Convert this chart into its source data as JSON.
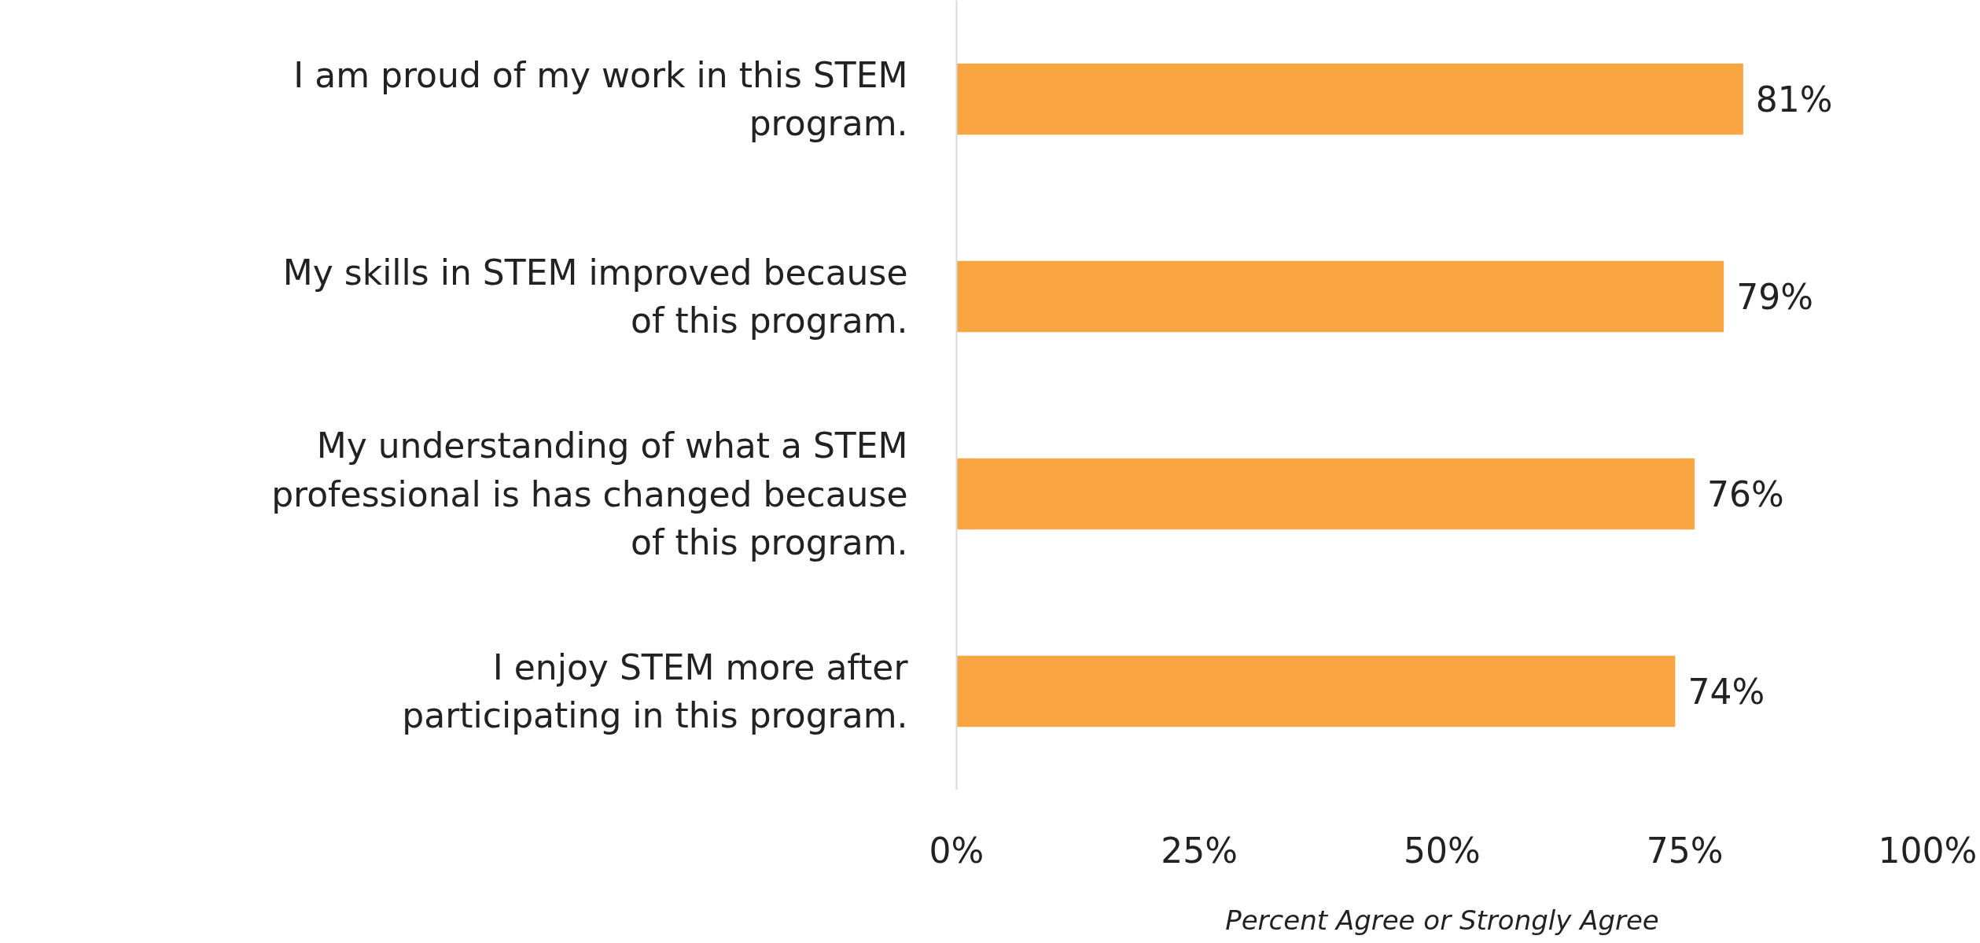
{
  "chart_data": {
    "type": "bar",
    "orientation": "horizontal",
    "categories": [
      "I am proud of my work in this STEM program.",
      "My skills in STEM improved because of this program.",
      "My understanding of what a STEM professional is has changed because of this program.",
      "I enjoy STEM more after participating in this program."
    ],
    "values": [
      81,
      79,
      76,
      74
    ],
    "value_labels": [
      "81%",
      "79%",
      "76%",
      "74%"
    ],
    "color": "#f9a541",
    "xlim": [
      0,
      100
    ],
    "xticks": [
      {
        "value": 0,
        "label": "0%"
      },
      {
        "value": 25,
        "label": "25%"
      },
      {
        "value": 50,
        "label": "50%"
      },
      {
        "value": 75,
        "label": "75%"
      },
      {
        "value": 100,
        "label": "100%"
      }
    ],
    "xlabel": "Percent Agree or Strongly Agree",
    "grid": false
  }
}
